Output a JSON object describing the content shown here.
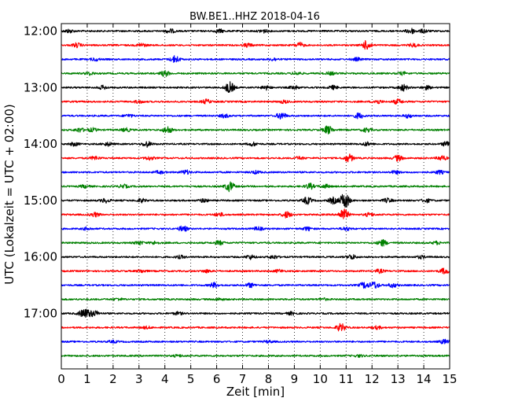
{
  "chart_data": {
    "type": "line",
    "title": "BW.BE1..HHZ 2018-04-16",
    "xlabel": "Zeit  [min]",
    "ylabel": "UTC (Lokalzeit = UTC + 02:00)",
    "xlim": [
      0,
      15
    ],
    "x_ticks": [
      "0",
      "1",
      "2",
      "3",
      "4",
      "5",
      "6",
      "7",
      "8",
      "9",
      "10",
      "11",
      "12",
      "13",
      "14",
      "15"
    ],
    "y_ticks": [
      "12:00",
      "13:00",
      "14:00",
      "15:00",
      "16:00",
      "17:00"
    ],
    "grid": "vertical dotted",
    "row_minutes": 15,
    "row_colors": [
      "#000000",
      "#ff0000",
      "#0000ff",
      "#008000"
    ],
    "rows": [
      {
        "start": "12:00",
        "events": [
          [
            0.3,
            0.5
          ],
          [
            4.2,
            0.6
          ],
          [
            6.1,
            0.5
          ],
          [
            7.8,
            0.5
          ],
          [
            13.5,
            0.8
          ],
          [
            14.0,
            0.5
          ]
        ]
      },
      {
        "start": "12:15",
        "events": [
          [
            0.6,
            0.6
          ],
          [
            3.1,
            0.5
          ],
          [
            7.2,
            0.5
          ],
          [
            9.2,
            0.7
          ],
          [
            11.8,
            1.3
          ],
          [
            13.6,
            0.5
          ]
        ]
      },
      {
        "start": "12:30",
        "events": [
          [
            1.3,
            0.4
          ],
          [
            4.4,
            1.0
          ],
          [
            8.2,
            0.4
          ],
          [
            11.4,
            0.4
          ]
        ]
      },
      {
        "start": "12:45",
        "events": [
          [
            1.1,
            0.4
          ],
          [
            4.0,
            0.8
          ],
          [
            9.1,
            0.4
          ],
          [
            10.4,
            0.4
          ],
          [
            13.2,
            0.4
          ]
        ]
      },
      {
        "start": "13:00",
        "events": [
          [
            1.6,
            0.5
          ],
          [
            6.5,
            1.6
          ],
          [
            7.9,
            0.6
          ],
          [
            9.0,
            0.5
          ],
          [
            10.5,
            0.5
          ],
          [
            13.2,
            0.9
          ],
          [
            14.1,
            0.5
          ]
        ]
      },
      {
        "start": "13:15",
        "events": [
          [
            3.0,
            0.4
          ],
          [
            5.6,
            0.6
          ],
          [
            8.6,
            0.4
          ],
          [
            12.2,
            0.6
          ],
          [
            13.0,
            0.7
          ]
        ]
      },
      {
        "start": "13:30",
        "events": [
          [
            2.6,
            0.4
          ],
          [
            6.3,
            0.5
          ],
          [
            8.5,
            1.0
          ],
          [
            11.5,
            0.8
          ],
          [
            13.4,
            0.5
          ]
        ]
      },
      {
        "start": "13:45",
        "events": [
          [
            0.7,
            0.6
          ],
          [
            1.2,
            0.5
          ],
          [
            2.5,
            0.5
          ],
          [
            4.1,
            1.0
          ],
          [
            10.3,
            1.2
          ],
          [
            11.8,
            0.6
          ]
        ]
      },
      {
        "start": "14:00",
        "events": [
          [
            0.5,
            0.5
          ],
          [
            1.8,
            0.5
          ],
          [
            3.3,
            0.8
          ],
          [
            7.4,
            0.5
          ],
          [
            11.8,
            0.5
          ],
          [
            14.9,
            0.8
          ]
        ]
      },
      {
        "start": "14:15",
        "events": [
          [
            1.3,
            0.5
          ],
          [
            3.4,
            0.5
          ],
          [
            9.2,
            0.4
          ],
          [
            11.1,
            1.1
          ],
          [
            13.0,
            0.8
          ],
          [
            14.7,
            0.7
          ]
        ]
      },
      {
        "start": "14:30",
        "events": [
          [
            3.8,
            0.4
          ],
          [
            4.8,
            0.6
          ],
          [
            7.5,
            0.4
          ],
          [
            12.9,
            0.4
          ],
          [
            14.6,
            0.5
          ]
        ]
      },
      {
        "start": "14:45",
        "events": [
          [
            0.9,
            0.4
          ],
          [
            2.4,
            0.5
          ],
          [
            6.5,
            1.4
          ],
          [
            9.6,
            0.8
          ],
          [
            10.2,
            0.5
          ]
        ]
      },
      {
        "start": "15:00",
        "events": [
          [
            1.7,
            0.6
          ],
          [
            3.1,
            0.5
          ],
          [
            5.5,
            0.5
          ],
          [
            9.5,
            1.0
          ],
          [
            10.5,
            0.9
          ],
          [
            10.95,
            2.4
          ],
          [
            12.6,
            0.6
          ],
          [
            14.1,
            0.5
          ]
        ]
      },
      {
        "start": "15:15",
        "events": [
          [
            1.3,
            0.6
          ],
          [
            6.1,
            0.5
          ],
          [
            8.7,
            0.9
          ],
          [
            10.9,
            1.8
          ],
          [
            11.9,
            0.5
          ]
        ]
      },
      {
        "start": "15:30",
        "events": [
          [
            1.0,
            0.4
          ],
          [
            4.7,
            0.8
          ],
          [
            7.6,
            0.5
          ],
          [
            9.5,
            0.5
          ],
          [
            11.0,
            0.5
          ]
        ]
      },
      {
        "start": "15:45",
        "events": [
          [
            3.0,
            0.5
          ],
          [
            3.6,
            0.4
          ],
          [
            6.1,
            0.6
          ],
          [
            12.4,
            0.9
          ],
          [
            14.5,
            0.4
          ]
        ]
      },
      {
        "start": "16:00",
        "events": [
          [
            4.6,
            0.4
          ],
          [
            7.3,
            0.6
          ],
          [
            8.2,
            0.5
          ],
          [
            11.2,
            0.7
          ],
          [
            13.9,
            0.4
          ]
        ]
      },
      {
        "start": "16:15",
        "events": [
          [
            3.1,
            0.4
          ],
          [
            5.6,
            0.4
          ],
          [
            8.4,
            0.4
          ],
          [
            12.3,
            0.5
          ],
          [
            14.8,
            0.8
          ]
        ]
      },
      {
        "start": "16:30",
        "events": [
          [
            5.9,
            0.7
          ],
          [
            7.3,
            0.6
          ],
          [
            11.7,
            0.9
          ],
          [
            12.1,
            1.0
          ],
          [
            12.8,
            0.6
          ]
        ]
      },
      {
        "start": "16:45",
        "events": [
          [
            2.2,
            0.3
          ],
          [
            6.1,
            0.3
          ],
          [
            10.1,
            0.3
          ]
        ]
      },
      {
        "start": "17:00",
        "events": [
          [
            0.8,
            0.7
          ],
          [
            1.0,
            1.0
          ],
          [
            1.3,
            0.7
          ],
          [
            4.5,
            0.4
          ],
          [
            8.9,
            0.4
          ]
        ]
      },
      {
        "start": "17:15",
        "events": [
          [
            3.3,
            0.3
          ],
          [
            10.8,
            1.1
          ],
          [
            12.2,
            0.4
          ]
        ]
      },
      {
        "start": "17:30",
        "events": [
          [
            2.0,
            0.3
          ],
          [
            8.0,
            0.3
          ],
          [
            14.8,
            0.6
          ]
        ]
      },
      {
        "start": "17:45",
        "events": [
          [
            4.5,
            0.3
          ],
          [
            11.5,
            0.3
          ]
        ]
      }
    ]
  }
}
